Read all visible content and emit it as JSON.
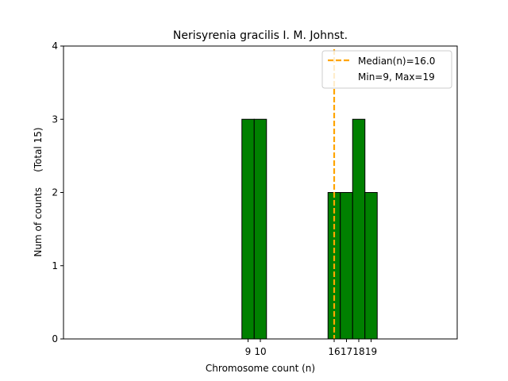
{
  "chart_data": {
    "type": "bar",
    "title": "Nerisyrenia gracilis I. M. Johnst.",
    "xlabel": "Chromosome count (n)",
    "ylabel": "Num of counts     (Total 15)",
    "xlim": [
      -6,
      26
    ],
    "ylim": [
      0,
      4
    ],
    "yticks": [
      "0",
      "1",
      "2",
      "3",
      "4"
    ],
    "xticks": [
      "9",
      "10",
      "16",
      "17",
      "18",
      "19"
    ],
    "bins": [
      {
        "x": 9,
        "count": 3
      },
      {
        "x": 10,
        "count": 3
      },
      {
        "x": 16,
        "count": 2
      },
      {
        "x": 17,
        "count": 2
      },
      {
        "x": 18,
        "count": 3
      },
      {
        "x": 19,
        "count": 2
      }
    ],
    "bar_width": 1,
    "bar_color": "#008000",
    "baseline_range": [
      -3,
      22
    ],
    "median": 16.0,
    "median_color": "#FFA500",
    "legend": {
      "position": "top-right",
      "entries": [
        "Median(n)=16.0",
        "Min=9, Max=19"
      ]
    },
    "grid": false
  }
}
